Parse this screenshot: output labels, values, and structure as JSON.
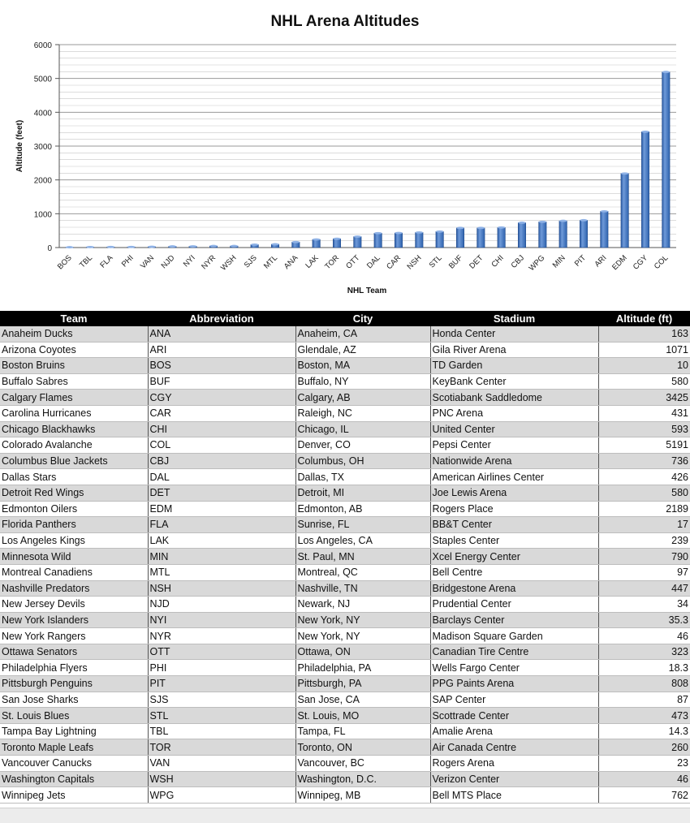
{
  "colors": {
    "bar": "#2e62ad",
    "bar_highlight": "#6f9ad9",
    "grid": "#9a9a9a",
    "header_bg": "#000000",
    "alt_row": "#d9d9d9"
  },
  "chart_data": {
    "type": "bar",
    "title": "NHL Arena Altitudes",
    "xlabel": "NHL Team",
    "ylabel": "Altitude (feet)",
    "ylim": [
      0,
      6000
    ],
    "yticks": [
      0,
      1000,
      2000,
      3000,
      4000,
      5000,
      6000
    ],
    "grid": true,
    "categories": [
      "BOS",
      "TBL",
      "FLA",
      "PHI",
      "VAN",
      "NJD",
      "NYI",
      "NYR",
      "WSH",
      "SJS",
      "MTL",
      "ANA",
      "LAK",
      "TOR",
      "OTT",
      "DAL",
      "CAR",
      "NSH",
      "STL",
      "BUF",
      "DET",
      "CHI",
      "CBJ",
      "WPG",
      "MIN",
      "PIT",
      "ARI",
      "EDM",
      "CGY",
      "COL"
    ],
    "values": [
      10,
      14.3,
      17,
      18.3,
      23,
      34,
      35.3,
      46,
      46,
      87,
      97,
      163,
      239,
      260,
      323,
      426,
      431,
      447,
      473,
      580,
      580,
      593,
      736,
      762,
      790,
      808,
      1071,
      2189,
      3425,
      5191
    ]
  },
  "table": {
    "headers": [
      "Team",
      "Abbreviation",
      "City",
      "Stadium",
      "Altitude (ft)"
    ],
    "rows": [
      [
        "Anaheim Ducks",
        "ANA",
        "Anaheim, CA",
        "Honda Center",
        "163"
      ],
      [
        "Arizona Coyotes",
        "ARI",
        "Glendale, AZ",
        "Gila River Arena",
        "1071"
      ],
      [
        "Boston Bruins",
        "BOS",
        "Boston, MA",
        "TD Garden",
        "10"
      ],
      [
        "Buffalo Sabres",
        "BUF",
        "Buffalo, NY",
        "KeyBank Center",
        "580"
      ],
      [
        "Calgary Flames",
        "CGY",
        "Calgary, AB",
        "Scotiabank Saddledome",
        "3425"
      ],
      [
        "Carolina Hurricanes",
        "CAR",
        "Raleigh, NC",
        "PNC Arena",
        "431"
      ],
      [
        "Chicago Blackhawks",
        "CHI",
        "Chicago, IL",
        "United Center",
        "593"
      ],
      [
        "Colorado Avalanche",
        "COL",
        "Denver, CO",
        "Pepsi Center",
        "5191"
      ],
      [
        "Columbus Blue Jackets",
        "CBJ",
        "Columbus, OH",
        "Nationwide Arena",
        "736"
      ],
      [
        "Dallas Stars",
        "DAL",
        "Dallas, TX",
        "American Airlines Center",
        "426"
      ],
      [
        "Detroit Red Wings",
        "DET",
        "Detroit, MI",
        "Joe Lewis Arena",
        "580"
      ],
      [
        "Edmonton Oilers",
        "EDM",
        "Edmonton, AB",
        "Rogers Place",
        "2189"
      ],
      [
        "Florida Panthers",
        "FLA",
        "Sunrise, FL",
        "BB&T Center",
        "17"
      ],
      [
        "Los Angeles Kings",
        "LAK",
        "Los Angeles, CA",
        "Staples Center",
        "239"
      ],
      [
        "Minnesota Wild",
        "MIN",
        "St. Paul, MN",
        "Xcel Energy Center",
        "790"
      ],
      [
        "Montreal Canadiens",
        "MTL",
        "Montreal, QC",
        "Bell Centre",
        "97"
      ],
      [
        "Nashville Predators",
        "NSH",
        "Nashville, TN",
        "Bridgestone Arena",
        "447"
      ],
      [
        "New Jersey Devils",
        "NJD",
        "Newark, NJ",
        "Prudential Center",
        "34"
      ],
      [
        "New York Islanders",
        "NYI",
        "New York, NY",
        "Barclays Center",
        "35.3"
      ],
      [
        "New York Rangers",
        "NYR",
        "New York, NY",
        "Madison Square Garden",
        "46"
      ],
      [
        "Ottawa Senators",
        "OTT",
        "Ottawa, ON",
        "Canadian Tire Centre",
        "323"
      ],
      [
        "Philadelphia Flyers",
        "PHI",
        "Philadelphia, PA",
        "Wells Fargo Center",
        "18.3"
      ],
      [
        "Pittsburgh Penguins",
        "PIT",
        "Pittsburgh, PA",
        "PPG Paints Arena",
        "808"
      ],
      [
        "San Jose Sharks",
        "SJS",
        "San Jose, CA",
        "SAP Center",
        "87"
      ],
      [
        "St. Louis Blues",
        "STL",
        "St. Louis, MO",
        "Scottrade Center",
        "473"
      ],
      [
        "Tampa Bay Lightning",
        "TBL",
        "Tampa, FL",
        "Amalie Arena",
        "14.3"
      ],
      [
        "Toronto Maple Leafs",
        "TOR",
        "Toronto, ON",
        "Air Canada Centre",
        "260"
      ],
      [
        "Vancouver Canucks",
        "VAN",
        "Vancouver, BC",
        "Rogers Arena",
        "23"
      ],
      [
        "Washington Capitals",
        "WSH",
        "Washington, D.C.",
        "Verizon Center",
        "46"
      ],
      [
        "Winnipeg Jets",
        "WPG",
        "Winnipeg, MB",
        "Bell MTS Place",
        "762"
      ]
    ]
  }
}
